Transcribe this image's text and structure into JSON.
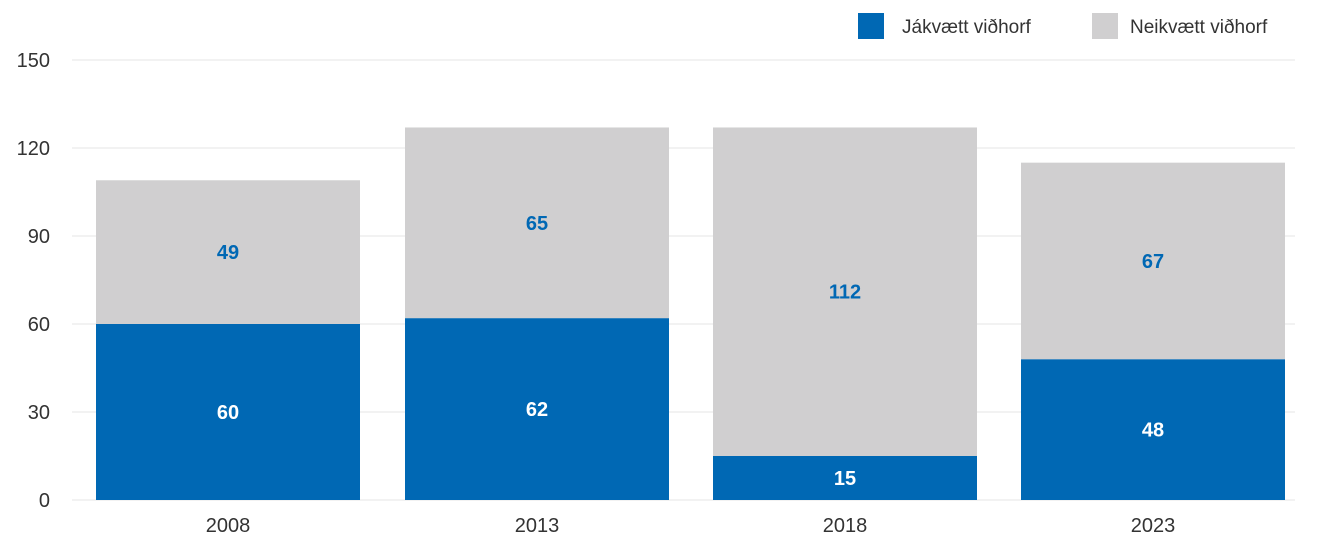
{
  "chart_data": {
    "type": "bar",
    "stacked": true,
    "title": "",
    "xlabel": "",
    "ylabel": "",
    "categories": [
      "2008",
      "2013",
      "2018",
      "2023"
    ],
    "series": [
      {
        "name": "Jákvætt viðhorf",
        "values": [
          60,
          62,
          15,
          48
        ],
        "color": "#0068b4",
        "label_color": "#ffffff"
      },
      {
        "name": "Neikvætt viðhorf",
        "values": [
          49,
          65,
          112,
          67
        ],
        "color": "#d0cfd0",
        "label_color": "#0068b4"
      }
    ],
    "ylim": [
      0,
      150
    ],
    "yticks": [
      0,
      30,
      60,
      90,
      120,
      150
    ],
    "grid": true,
    "legend_position": "top-right"
  }
}
